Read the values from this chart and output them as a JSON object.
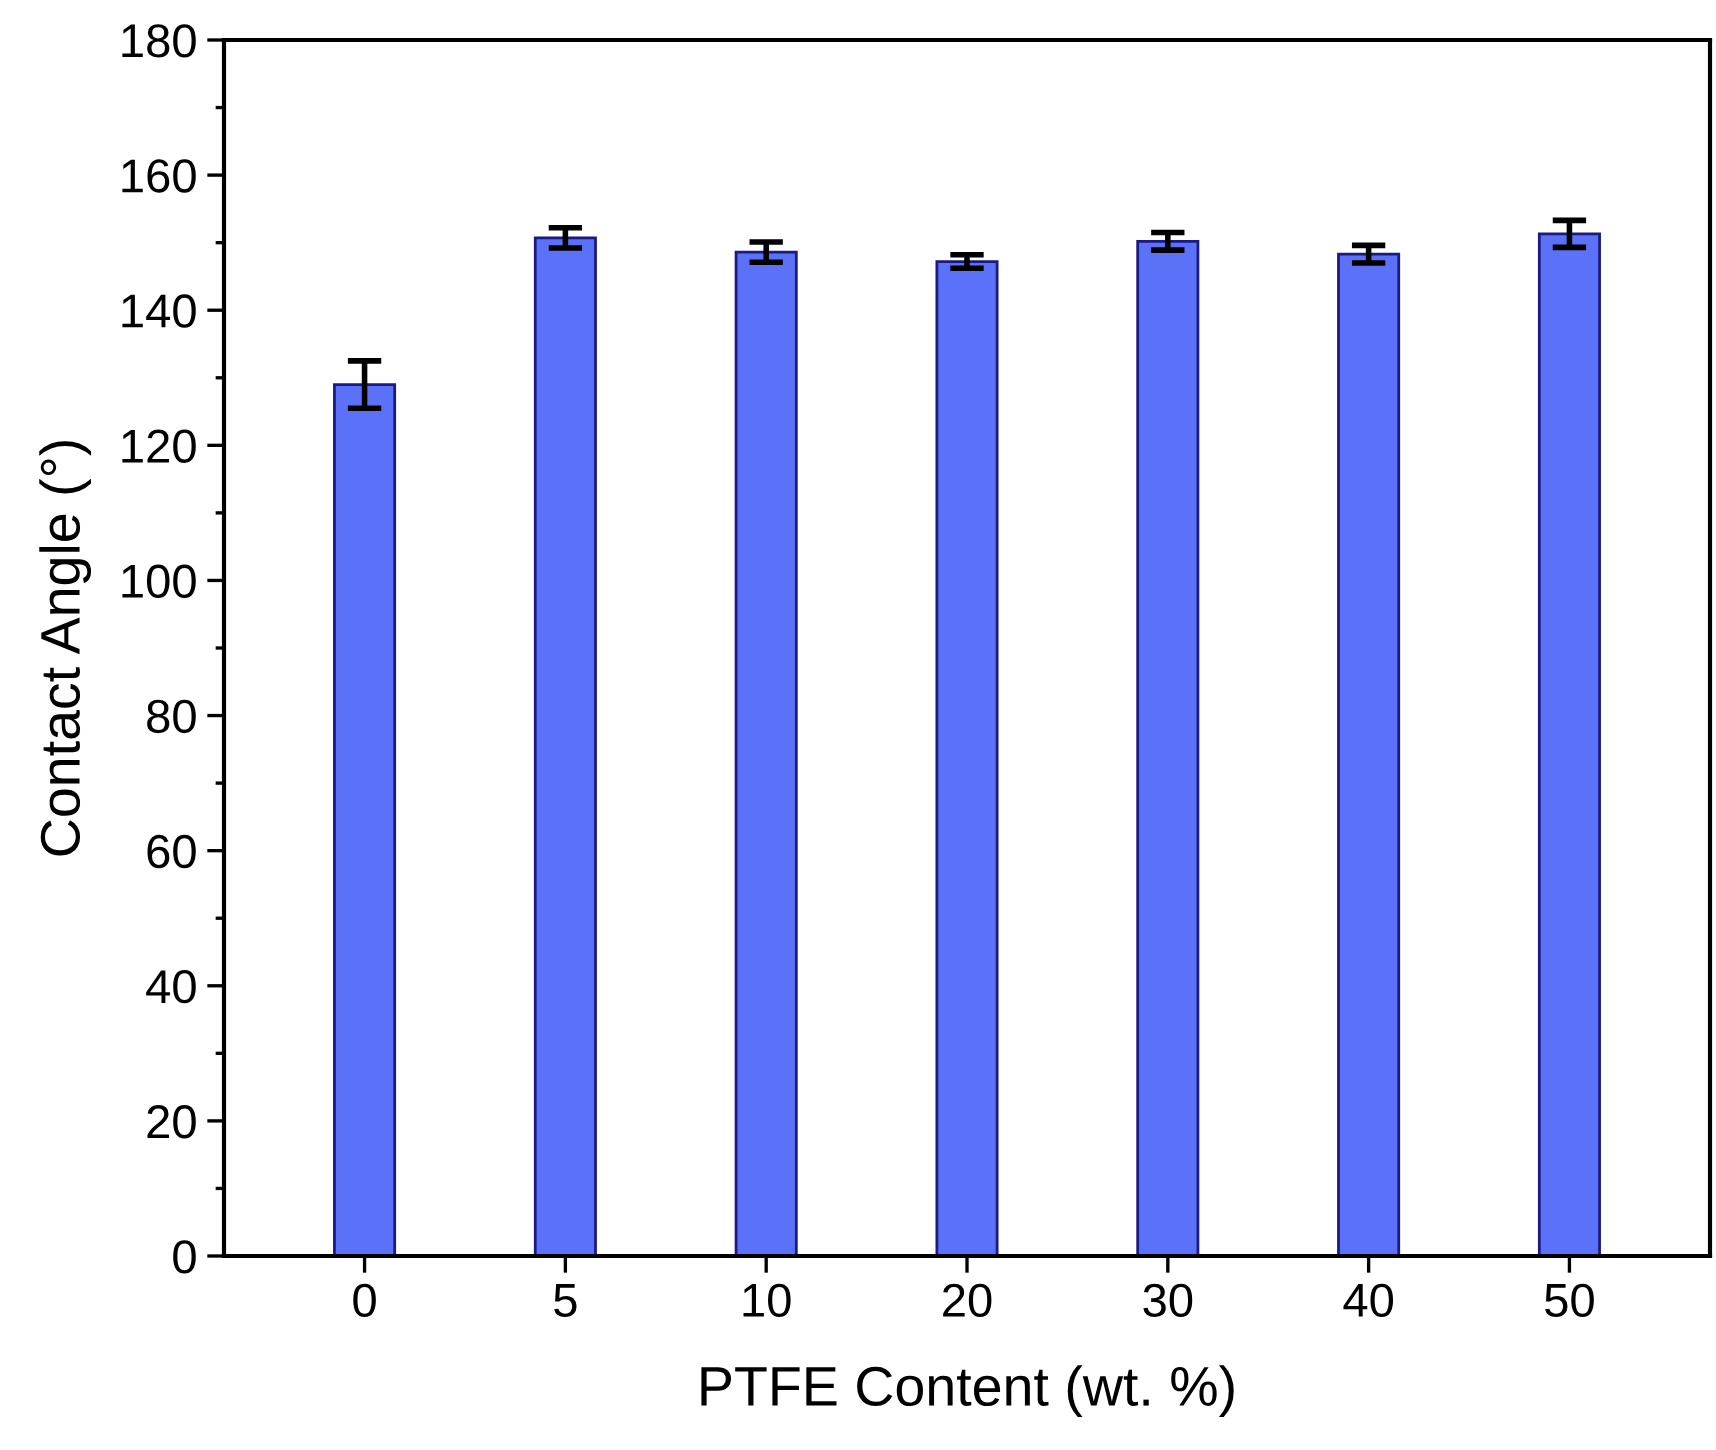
{
  "chart_data": {
    "type": "bar",
    "xlabel": "PTFE Content (wt. %)",
    "ylabel": "Contact Angle (°)",
    "categories": [
      "0",
      "5",
      "10",
      "20",
      "30",
      "40",
      "50"
    ],
    "values": [
      129,
      150.7,
      148.6,
      147.2,
      150.2,
      148.3,
      151.3
    ],
    "errors": [
      3.5,
      1.5,
      1.5,
      1,
      1.3,
      1.3,
      2
    ],
    "color": "#5b72f8",
    "ylim": [
      0,
      180
    ],
    "yticks": [
      0,
      20,
      40,
      60,
      80,
      100,
      120,
      140,
      160,
      180
    ],
    "grid": false,
    "legend": false
  }
}
